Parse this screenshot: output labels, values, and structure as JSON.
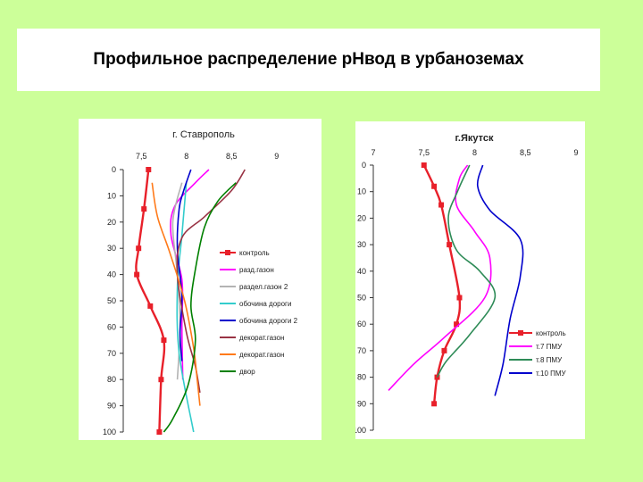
{
  "slide": {
    "title": "Профильное распределение рНвод в урбаноземах"
  },
  "chart_data": [
    {
      "type": "line",
      "title": "г. Ставрополь",
      "orientation": "depth-profile",
      "x_ticks": [
        "7,5",
        "8",
        "8,5",
        "9"
      ],
      "x_tick_values": [
        7.5,
        8,
        8.5,
        9
      ],
      "xlim": [
        7.3,
        9.3
      ],
      "y_ticks": [
        "0",
        "10",
        "20",
        "30",
        "40",
        "50",
        "60",
        "70",
        "80",
        "90",
        "100"
      ],
      "ylim": [
        0,
        100
      ],
      "legend_position": "right",
      "series": [
        {
          "name": "контроль",
          "color": "#e8202a",
          "marker": "square",
          "points": [
            [
              7.58,
              0
            ],
            [
              7.53,
              15
            ],
            [
              7.47,
              30
            ],
            [
              7.45,
              40
            ],
            [
              7.6,
              52
            ],
            [
              7.75,
              65
            ],
            [
              7.72,
              80
            ],
            [
              7.7,
              100
            ]
          ]
        },
        {
          "name": "разд.газон",
          "color": "#ff00ff",
          "marker": "none",
          "points": [
            [
              8.25,
              0
            ],
            [
              8.1,
              5
            ],
            [
              7.87,
              14
            ],
            [
              7.83,
              25
            ],
            [
              7.95,
              42
            ],
            [
              7.95,
              60
            ],
            [
              7.96,
              80
            ]
          ]
        },
        {
          "name": "раздел.газон 2",
          "color": "#b3b3b3",
          "marker": "none",
          "points": [
            [
              7.95,
              5
            ],
            [
              7.85,
              20
            ],
            [
              7.9,
              40
            ],
            [
              7.93,
              60
            ],
            [
              7.9,
              80
            ]
          ]
        },
        {
          "name": "обочина дороги",
          "color": "#33cccc",
          "marker": "none",
          "points": [
            [
              8.0,
              5
            ],
            [
              7.95,
              25
            ],
            [
              7.9,
              45
            ],
            [
              7.92,
              70
            ],
            [
              8.08,
              100
            ]
          ]
        },
        {
          "name": "обочина дороги 2",
          "color": "#0000cc",
          "marker": "none",
          "points": [
            [
              8.05,
              0
            ],
            [
              7.97,
              8
            ],
            [
              7.92,
              15
            ],
            [
              7.9,
              30
            ],
            [
              7.95,
              48
            ],
            [
              7.93,
              62
            ],
            [
              7.95,
              73
            ]
          ]
        },
        {
          "name": "декорат.газон",
          "color": "#993344",
          "marker": "none",
          "points": [
            [
              8.65,
              0
            ],
            [
              8.5,
              8
            ],
            [
              8.2,
              18
            ],
            [
              7.95,
              26
            ],
            [
              7.9,
              40
            ],
            [
              8.0,
              62
            ],
            [
              8.1,
              75
            ],
            [
              8.15,
              85
            ]
          ]
        },
        {
          "name": "декорат.газон",
          "color": "#ff7a1a",
          "marker": "none",
          "points": [
            [
              7.62,
              5
            ],
            [
              7.68,
              18
            ],
            [
              7.82,
              32
            ],
            [
              7.98,
              50
            ],
            [
              8.08,
              68
            ],
            [
              8.12,
              80
            ],
            [
              8.15,
              90
            ]
          ]
        },
        {
          "name": "двор",
          "color": "#008000",
          "marker": "none",
          "points": [
            [
              8.55,
              5
            ],
            [
              8.35,
              12
            ],
            [
              8.2,
              22
            ],
            [
              8.1,
              38
            ],
            [
              8.05,
              52
            ],
            [
              8.1,
              65
            ],
            [
              8.02,
              82
            ],
            [
              7.85,
              95
            ],
            [
              7.75,
              100
            ]
          ]
        }
      ]
    },
    {
      "type": "line",
      "title": "г.Якутск",
      "orientation": "depth-profile",
      "x_ticks": [
        "7",
        "7,5",
        "8",
        "8,5",
        "9"
      ],
      "x_tick_values": [
        7,
        7.5,
        8,
        8.5,
        9
      ],
      "xlim": [
        7,
        9
      ],
      "y_ticks": [
        "0",
        "10",
        "20",
        "30",
        "40",
        "50",
        "60",
        "70",
        "80",
        "90",
        "100"
      ],
      "ylim": [
        0,
        100
      ],
      "legend_position": "bottom-right",
      "series": [
        {
          "name": "контроль",
          "color": "#e8202a",
          "marker": "square",
          "points": [
            [
              7.5,
              0
            ],
            [
              7.6,
              8
            ],
            [
              7.67,
              15
            ],
            [
              7.75,
              30
            ],
            [
              7.85,
              50
            ],
            [
              7.82,
              60
            ],
            [
              7.7,
              70
            ],
            [
              7.63,
              80
            ],
            [
              7.6,
              90
            ]
          ]
        },
        {
          "name": "т.7 ПМУ",
          "color": "#ff00ff",
          "marker": "none",
          "points": [
            [
              7.93,
              0
            ],
            [
              7.85,
              5
            ],
            [
              7.82,
              15
            ],
            [
              8.0,
              25
            ],
            [
              8.15,
              35
            ],
            [
              8.1,
              50
            ],
            [
              7.7,
              65
            ],
            [
              7.4,
              75
            ],
            [
              7.15,
              85
            ]
          ]
        },
        {
          "name": "т.8 ПМУ",
          "color": "#2e8b57",
          "marker": "none",
          "points": [
            [
              7.95,
              0
            ],
            [
              7.83,
              10
            ],
            [
              7.74,
              20
            ],
            [
              7.82,
              32
            ],
            [
              8.05,
              40
            ],
            [
              8.2,
              50
            ],
            [
              7.95,
              64
            ],
            [
              7.72,
              74
            ],
            [
              7.63,
              80
            ]
          ]
        },
        {
          "name": "т.10 ПМУ",
          "color": "#0000cc",
          "marker": "none",
          "points": [
            [
              8.08,
              0
            ],
            [
              8.03,
              8
            ],
            [
              8.15,
              17
            ],
            [
              8.45,
              28
            ],
            [
              8.45,
              42
            ],
            [
              8.35,
              58
            ],
            [
              8.28,
              75
            ],
            [
              8.2,
              87
            ]
          ]
        }
      ]
    }
  ]
}
